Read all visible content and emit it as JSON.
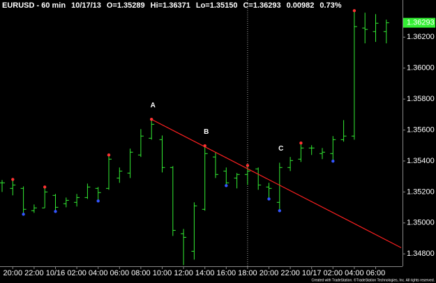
{
  "chart_data": {
    "type": "ohlc",
    "header": [
      "EURUSD - 60 min",
      "10/17/13",
      "O=1.35289",
      "Hi=1.36371",
      "Lo=1.35150",
      "C=1.36293",
      "0.00982",
      "0.73%"
    ],
    "header_colors": [
      "#ffffff",
      "#ffffff",
      "#33ff33",
      "#ffffff",
      "#ffffff",
      "#33ff33",
      "#33ff33",
      "#33ff33"
    ],
    "categories": [
      null,
      "20:00",
      null,
      "22:00",
      null,
      "10/16",
      null,
      "02:00",
      null,
      "04:00",
      null,
      "06:00",
      null,
      "08:00",
      null,
      "10:00",
      null,
      "12:00",
      null,
      "14:00",
      null,
      "16:00",
      null,
      "18:00",
      null,
      "20:00",
      null,
      "22:00",
      null,
      "10/17",
      null,
      "02:00",
      null,
      "04:00",
      null,
      "06:00",
      null
    ],
    "open": [
      1.35259,
      1.35223,
      1.35223,
      1.35079,
      1.35097,
      1.35178,
      1.35124,
      1.35133,
      1.35164,
      1.35223,
      1.35223,
      1.3529,
      1.35322,
      1.35439,
      1.35547,
      1.35538,
      1.35358,
      1.3493,
      1.34817,
      1.35088,
      1.35426,
      1.35335,
      1.3529,
      1.35313,
      1.35349,
      1.35232,
      1.35133,
      1.35358,
      1.35412,
      1.35484,
      1.35448,
      1.35448,
      1.35538,
      1.35561,
      1.36259,
      1.36236,
      1.36236
    ],
    "high": [
      1.35277,
      1.35281,
      1.35236,
      1.35119,
      1.35232,
      1.35187,
      1.35164,
      1.35187,
      1.35254,
      1.35232,
      1.35439,
      1.35358,
      1.3548,
      1.35606,
      1.35669,
      1.35565,
      1.35367,
      1.34961,
      1.35133,
      1.35498,
      1.35457,
      1.35358,
      1.35322,
      1.35371,
      1.35358,
      1.35259,
      1.35389,
      1.35426,
      1.35516,
      1.35502,
      1.35484,
      1.35561,
      1.35664,
      1.36371,
      1.36358,
      1.36349,
      1.36313
    ],
    "low": [
      1.352,
      1.35178,
      1.35056,
      1.35065,
      1.35097,
      1.35074,
      1.35101,
      1.35106,
      1.35155,
      1.35142,
      1.35214,
      1.35259,
      1.3529,
      1.35426,
      1.35538,
      1.35326,
      1.34916,
      1.34727,
      1.34763,
      1.35079,
      1.3529,
      1.35241,
      1.35223,
      1.35245,
      1.35214,
      1.35155,
      1.35079,
      1.35335,
      1.35394,
      1.35439,
      1.35412,
      1.35399,
      1.35525,
      1.35538,
      1.3616,
      1.36169,
      1.3616
    ],
    "close": [
      1.35259,
      1.35245,
      1.35088,
      1.35097,
      1.352,
      1.35101,
      1.35146,
      1.35164,
      1.35232,
      1.35196,
      1.35412,
      1.35335,
      1.35457,
      1.35561,
      1.35637,
      1.35358,
      1.34952,
      1.34907,
      1.3511,
      1.35448,
      1.35313,
      1.35259,
      1.35313,
      1.35335,
      1.35245,
      1.35223,
      1.35358,
      1.35403,
      1.35484,
      1.35484,
      1.35457,
      1.35538,
      1.35561,
      1.36268,
      1.3625,
      1.3629,
      1.36293
    ],
    "color": "#33ee33",
    "pivot_high_index": [
      1,
      4,
      10,
      14,
      19,
      23,
      28,
      33
    ],
    "pivot_low_index": [
      2,
      5,
      9,
      21,
      25,
      26,
      31
    ],
    "pivot_high_color": "#ff3333",
    "pivot_low_color": "#3355ff",
    "annotations": [
      {
        "text": "A",
        "bar": 14
      },
      {
        "text": "B",
        "bar": 19
      },
      {
        "text": "C",
        "bar": 26
      }
    ],
    "trendline": {
      "x": [
        14,
        37.39
      ],
      "y": [
        1.35669,
        1.3484
      ],
      "color": "#ff2020"
    },
    "cursor_bar": 23,
    "last_price": 1.36293,
    "ylim": [
      1.3472,
      1.3644
    ],
    "yticks": [
      {
        "value": 1.348,
        "label": "1.34800"
      },
      {
        "value": 1.35,
        "label": "1.35000"
      },
      {
        "value": 1.352,
        "label": "1.35200"
      },
      {
        "value": 1.354,
        "label": "1.35400"
      },
      {
        "value": 1.356,
        "label": "1.35600"
      },
      {
        "value": 1.358,
        "label": "1.35800"
      },
      {
        "value": 1.36,
        "label": "1.36000"
      },
      {
        "value": 1.362,
        "label": "1.36200"
      }
    ],
    "footer": "Created with TradeStation. ©TradeStation Technologies, Inc. All rights reserved."
  }
}
